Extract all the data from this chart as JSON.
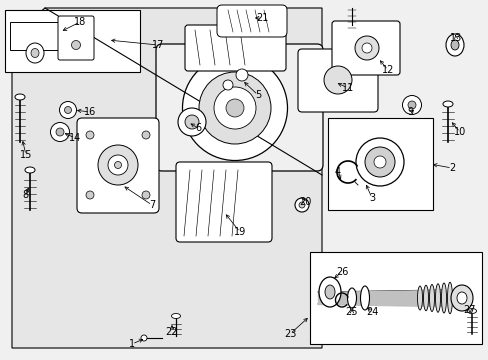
{
  "bg_color": "#f0f0f0",
  "white": "#ffffff",
  "black": "#000000",
  "gray_light": "#d8d8d8",
  "gray_mid": "#bbbbbb",
  "gray_dark": "#cccccc"
}
